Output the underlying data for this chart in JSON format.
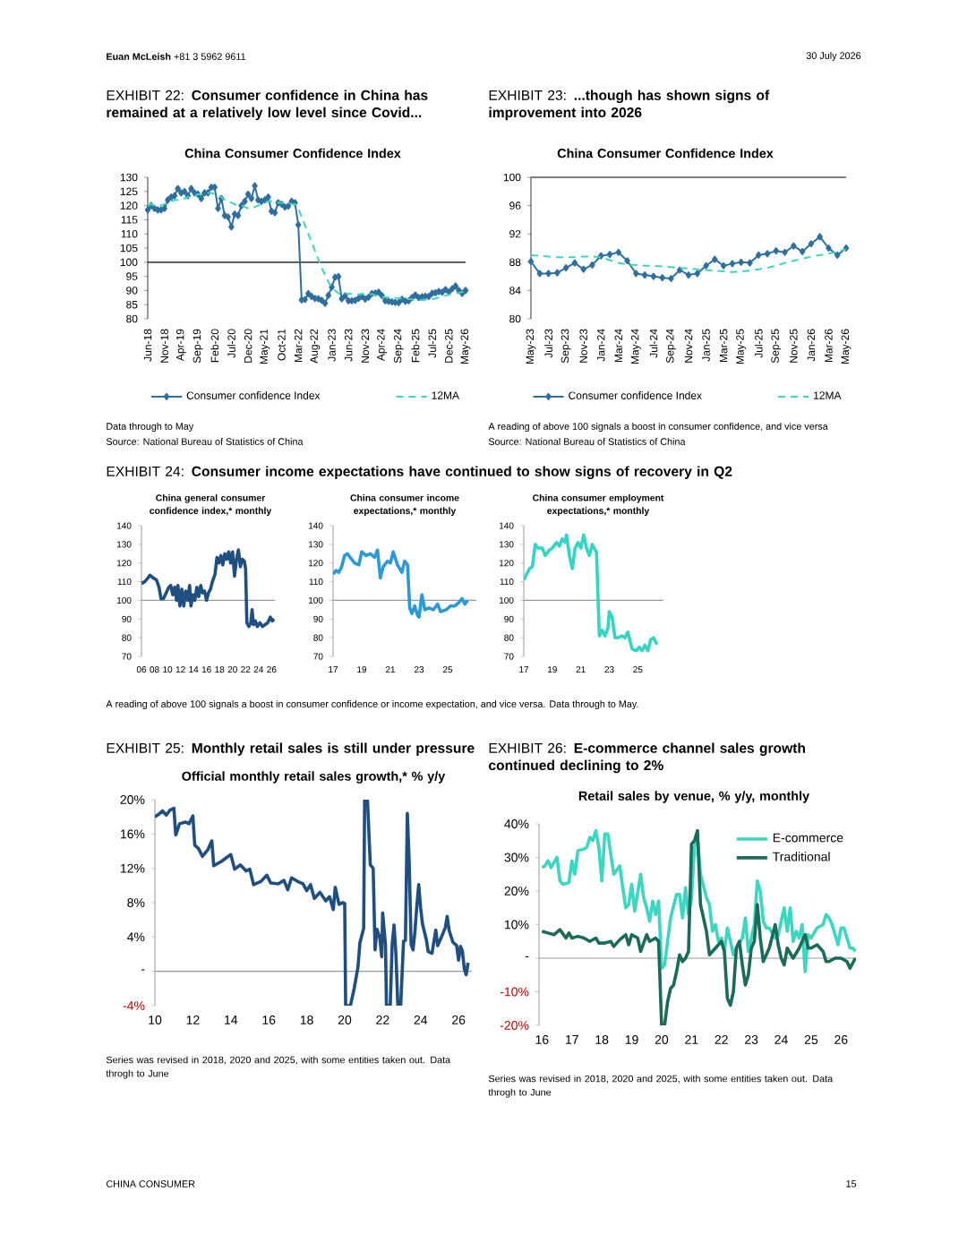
{
  "chart_data": [
    {
      "type": "line",
      "title": "EXHIBIT 22: **Consumer confidence in China has remained at a relatively low level since Covid...**",
      "subtitle": "China Consumer Confidence Index",
      "categories": [
        "Jun-18",
        null,
        null,
        null,
        null,
        "Nov-18",
        null,
        null,
        null,
        null,
        "Apr-19",
        null,
        null,
        null,
        null,
        "Sep-19",
        null,
        null,
        null,
        null,
        "Feb-20",
        null,
        null,
        null,
        null,
        "Jul-20",
        null,
        null,
        null,
        null,
        "Dec-20",
        null,
        null,
        null,
        null,
        "May-21",
        null,
        null,
        null,
        null,
        "Oct-21",
        null,
        null,
        null,
        null,
        "Mar-22",
        null,
        null,
        null,
        null,
        "Aug-22",
        null,
        null,
        null,
        null,
        "Jan-23",
        null,
        null,
        null,
        null,
        "Jun-23",
        null,
        null,
        null,
        null,
        "Nov-23",
        null,
        null,
        null,
        null,
        "Apr-24",
        null,
        null,
        null,
        null,
        "Sep-24",
        null,
        null,
        null,
        null,
        "Feb-25",
        null,
        null,
        null,
        null,
        "Jul-25",
        null,
        null,
        null,
        null,
        "Dec-25",
        null,
        null,
        null,
        null,
        "May-26"
      ],
      "series": [
        {
          "name": "Consumer confidence Index",
          "color": "#2f6fa0",
          "marker": "diamond",
          "values": [
            118.5,
            120,
            119,
            118.5,
            118.5,
            119,
            122,
            123,
            123.5,
            126,
            124.5,
            125,
            123.5,
            126,
            124.5,
            124,
            122.5,
            124.5,
            124.5,
            126.5,
            126.5,
            119,
            122.5,
            116.5,
            116,
            112.5,
            117,
            116.5,
            120,
            121.5,
            124,
            122.5,
            127,
            122,
            121.5,
            122,
            123,
            118,
            117.5,
            121,
            120.5,
            119.5,
            119.8,
            121.5,
            121,
            113.2,
            86.7,
            86.8,
            88.9,
            87.9,
            87.2,
            87.1,
            86.5,
            85.5,
            88.3,
            91.2,
            94.7,
            94.9,
            87.1,
            88.1,
            86.4,
            86.4,
            86.5,
            87.2,
            87.9,
            87.0,
            87.6,
            88.9,
            89.1,
            89.4,
            88.2,
            86.4,
            86.2,
            86.0,
            85.8,
            85.7,
            86.9,
            86.2,
            86.4,
            87.5,
            88.4,
            87.5,
            87.8,
            88.0,
            87.9,
            89.0,
            89.2,
            89.6,
            89.4,
            90.3,
            89.5,
            90.6,
            91.6,
            90.0,
            89.0,
            90.0
          ]
        },
        {
          "name": "12MA",
          "color": "#3dd6b8",
          "line_style": "dashed",
          "values": [
            120,
            120.5,
            120,
            120,
            120,
            120.5,
            121,
            121.5,
            122,
            122,
            122.5,
            122.5,
            123,
            123,
            123.5,
            124,
            124,
            124,
            124.5,
            124.5,
            124,
            123.5,
            123,
            122,
            121.5,
            121,
            120.5,
            120,
            120,
            119.5,
            119,
            119,
            119.5,
            120,
            120.5,
            121,
            121.5,
            121.5,
            121.5,
            121,
            121,
            121,
            121,
            120.5,
            120.5,
            119,
            116,
            113,
            110,
            107,
            104,
            101,
            98,
            95.5,
            93,
            91,
            90,
            89,
            88.5,
            89.0,
            88.9,
            88.8,
            88.7,
            88.7,
            88.7,
            88.8,
            88.8,
            88.7,
            88.3,
            87.9,
            87.7,
            87.6,
            87.5,
            87.5,
            87.4,
            87.3,
            87.2,
            87.1,
            87.0,
            86.9,
            86.8,
            86.7,
            86.6,
            86.7,
            86.8,
            87.0,
            87.2,
            87.5,
            87.9,
            88.2,
            88.5,
            88.8,
            89.0,
            89.2,
            89.5,
            89.8
          ]
        }
      ],
      "ylim": [
        80,
        130
      ],
      "yticks": [
        80,
        85,
        90,
        95,
        100,
        105,
        110,
        115,
        120,
        125,
        130
      ],
      "ref_lines": [
        {
          "axis": "y",
          "value": 100,
          "color": "#000000"
        }
      ],
      "legend": "bottom",
      "annotations": [
        "**Euan McLeish**   +81 3 5962 9611",
        "30 July 2026",
        "CHINA CONSUMER",
        "15",
        "Data through to May",
        "Source: National Bureau of Statistics of China"
      ]
    },
    {
      "type": "line",
      "title": "EXHIBIT 23: **...though has shown signs of improvement into 2026**",
      "subtitle": "China Consumer Confidence Index",
      "categories": [
        "May-23",
        null,
        "Jul-23",
        null,
        "Sep-23",
        null,
        "Nov-23",
        null,
        "Jan-24",
        null,
        "Mar-24",
        null,
        "May-24",
        null,
        "Jul-24",
        null,
        "Sep-24",
        null,
        "Nov-24",
        null,
        "Jan-25",
        null,
        "Mar-25",
        null,
        "May-25",
        null,
        "Jul-25",
        null,
        "Sep-25",
        null,
        "Nov-25",
        null,
        "Jan-26",
        null,
        "Mar-26",
        null,
        "May-26"
      ],
      "series": [
        {
          "name": "Consumer confidence Index",
          "color": "#2f6fa0",
          "marker": "diamond",
          "values": [
            88.1,
            86.4,
            86.4,
            86.5,
            87.2,
            87.9,
            87.0,
            87.6,
            88.9,
            89.1,
            89.4,
            88.2,
            86.4,
            86.2,
            86.0,
            85.8,
            85.7,
            86.9,
            86.2,
            86.4,
            87.5,
            88.4,
            87.5,
            87.8,
            88.0,
            87.9,
            89.0,
            89.2,
            89.6,
            89.4,
            90.3,
            89.5,
            90.6,
            91.6,
            90.0,
            89.0,
            90.0
          ]
        },
        {
          "name": "12MA",
          "color": "#3dd6b8",
          "line_style": "dashed",
          "values": [
            89.0,
            88.9,
            88.8,
            88.7,
            88.7,
            88.7,
            88.8,
            88.8,
            88.7,
            88.3,
            87.9,
            87.7,
            87.6,
            87.5,
            87.5,
            87.4,
            87.3,
            87.2,
            87.1,
            87.0,
            86.9,
            86.8,
            86.7,
            86.6,
            86.7,
            86.8,
            87.0,
            87.2,
            87.5,
            87.9,
            88.2,
            88.5,
            88.8,
            89.0,
            89.2,
            89.5,
            89.8
          ]
        }
      ],
      "ylim": [
        80,
        100
      ],
      "yticks": [
        80,
        84,
        88,
        92,
        96,
        100
      ],
      "ref_lines": [
        {
          "axis": "y",
          "value": 100,
          "color": "#000000"
        }
      ],
      "legend": "bottom",
      "annotations": [
        "A reading of above 100 signals a boost in consumer confidence, and vice versa",
        "Source: National Bureau of Statistics of China"
      ]
    },
    {
      "type": "line",
      "title": "EXHIBIT 24: **Consumer income expectations have continued to show signs of recovery in Q2**",
      "subtitle": "China general consumer confidence index,* monthly",
      "series": [
        {
          "color": "#1f4e80",
          "x": [
            2006.0,
            2006.5,
            2007.0,
            2007.3,
            2007.8,
            2008.3,
            2008.7,
            2009.0,
            2009.4,
            2009.8,
            2010.2,
            2010.5,
            2010.8,
            2011.1,
            2011.4,
            2011.6,
            2011.9,
            2012.2,
            2012.5,
            2012.8,
            2013.1,
            2013.4,
            2013.6,
            2013.9,
            2014.2,
            2014.5,
            2014.8,
            2015.1,
            2015.4,
            2015.7,
            2016.0,
            2016.3,
            2016.6,
            2016.9,
            2017.3,
            2017.6,
            2017.9,
            2018.2,
            2018.5,
            2018.8,
            2019.1,
            2019.4,
            2019.7,
            2020.0,
            2020.3,
            2020.6,
            2020.9,
            2021.2,
            2021.5,
            2021.8,
            2022.0,
            2022.2,
            2022.5,
            2022.8,
            2023.0,
            2023.2,
            2023.5,
            2023.8,
            2024.2,
            2024.6,
            2025.0,
            2025.4,
            2025.8,
            2026.1,
            2026.4
          ],
          "values": [
            109,
            110,
            112,
            113.5,
            112,
            111,
            107,
            101,
            101,
            104,
            107,
            108,
            103,
            107,
            100,
            108,
            97,
            106,
            97,
            105,
            100,
            108,
            97,
            103,
            100,
            107,
            102,
            108,
            104,
            105,
            100,
            104,
            106,
            110,
            114,
            123,
            120,
            124,
            119,
            125,
            122,
            126,
            120,
            126,
            113,
            122,
            127,
            118,
            122,
            121,
            117,
            88,
            86,
            88,
            95,
            87,
            89,
            86,
            88,
            86,
            87,
            88,
            91,
            89,
            90
          ]
        }
      ],
      "xlim": [
        2006,
        2026.5
      ],
      "xticks": [
        {
          "value": 2006,
          "label": "06"
        },
        {
          "value": 2008,
          "label": "08"
        },
        {
          "value": 2010,
          "label": "10"
        },
        {
          "value": 2012,
          "label": "12"
        },
        {
          "value": 2014,
          "label": "14"
        },
        {
          "value": 2016,
          "label": "16"
        },
        {
          "value": 2018,
          "label": "18"
        },
        {
          "value": 2020,
          "label": "20"
        },
        {
          "value": 2022,
          "label": "22"
        },
        {
          "value": 2024,
          "label": "24"
        },
        {
          "value": 2026,
          "label": "26"
        }
      ],
      "ylim": [
        70,
        140
      ],
      "yticks": [
        70,
        80,
        90,
        100,
        110,
        120,
        130,
        140
      ],
      "ref_lines": [
        {
          "axis": "y",
          "value": 100,
          "color": "#999999"
        }
      ],
      "annotations": [
        "A reading of above 100 signals a boost in consumer confidence or income expectation, and vice versa. Data through to May."
      ]
    },
    {
      "type": "line",
      "subtitle": "China consumer income expectations,* monthly",
      "series": [
        {
          "color": "#2b9ad6",
          "x": [
            2017.0,
            2017.2,
            2017.4,
            2017.6,
            2017.8,
            2018.0,
            2018.2,
            2018.5,
            2018.8,
            2019.0,
            2019.3,
            2019.6,
            2019.9,
            2020.1,
            2020.3,
            2020.5,
            2020.8,
            2021.0,
            2021.2,
            2021.5,
            2021.8,
            2022.0,
            2022.2,
            2022.35,
            2022.5,
            2022.7,
            2022.9,
            2023.0,
            2023.2,
            2023.4,
            2023.7,
            2024.0,
            2024.3,
            2024.5,
            2024.9,
            2025.2,
            2025.5,
            2025.8,
            2026.0,
            2026.2,
            2026.4
          ],
          "values": [
            114,
            116,
            115,
            118,
            124,
            125,
            123,
            120,
            119,
            126,
            124,
            125,
            123,
            127,
            112,
            118,
            121,
            120,
            126,
            119,
            115,
            121,
            119,
            96,
            93,
            97,
            92,
            91,
            103,
            95,
            96,
            95,
            98,
            94,
            95,
            97,
            97,
            99,
            101,
            98,
            100
          ]
        }
      ],
      "xlim": [
        2017,
        2027
      ],
      "xticks": [
        {
          "value": 2017,
          "label": "17"
        },
        {
          "value": 2019,
          "label": "19"
        },
        {
          "value": 2021,
          "label": "21"
        },
        {
          "value": 2023,
          "label": "23"
        },
        {
          "value": 2025,
          "label": "25"
        }
      ],
      "ylim": [
        70,
        140
      ],
      "yticks": [
        70,
        80,
        90,
        100,
        110,
        120,
        130,
        140
      ],
      "ref_lines": [
        {
          "axis": "y",
          "value": 100,
          "color": "#999999"
        }
      ]
    },
    {
      "type": "line",
      "subtitle": "China consumer employment expectations,* monthly",
      "series": [
        {
          "color": "#33d6c2",
          "x": [
            2017.0,
            2017.2,
            2017.4,
            2017.6,
            2017.8,
            2018.0,
            2018.3,
            2018.5,
            2018.8,
            2019.0,
            2019.3,
            2019.5,
            2019.7,
            2019.9,
            2020.0,
            2020.2,
            2020.4,
            2020.6,
            2020.8,
            2021.0,
            2021.2,
            2021.4,
            2021.6,
            2021.8,
            2022.0,
            2022.1,
            2022.3,
            2022.5,
            2022.7,
            2022.9,
            2023.0,
            2023.2,
            2023.4,
            2023.6,
            2023.9,
            2024.1,
            2024.3,
            2024.6,
            2024.9,
            2025.1,
            2025.3,
            2025.5,
            2025.7,
            2025.9,
            2026.1,
            2026.3,
            2026.4
          ],
          "values": [
            111,
            114,
            117,
            118,
            130,
            128,
            128,
            124,
            127,
            128,
            131,
            129,
            133,
            131,
            135,
            124,
            117,
            128,
            131,
            128,
            135,
            128,
            124,
            130,
            127,
            126,
            81,
            84,
            81,
            85,
            94,
            91,
            80,
            80,
            81,
            80,
            83,
            74,
            73,
            75,
            73,
            76,
            73,
            79,
            80,
            77,
            77
          ]
        }
      ],
      "xlim": [
        2017,
        2026.8
      ],
      "xticks": [
        {
          "value": 2017,
          "label": "17"
        },
        {
          "value": 2019,
          "label": "19"
        },
        {
          "value": 2021,
          "label": "21"
        },
        {
          "value": 2023,
          "label": "23"
        },
        {
          "value": 2025,
          "label": "25"
        }
      ],
      "ylim": [
        70,
        140
      ],
      "yticks": [
        70,
        80,
        90,
        100,
        110,
        120,
        130,
        140
      ],
      "ref_lines": [
        {
          "axis": "y",
          "value": 100,
          "color": "#999999"
        }
      ]
    },
    {
      "type": "line",
      "title": "EXHIBIT 25: **Monthly retail sales is still under pressure**",
      "subtitle": "Official monthly retail sales growth,* % y/y",
      "series": [
        {
          "color": "#1f4e80",
          "x": [
            2010.0,
            2010.2,
            2010.4,
            2010.6,
            2010.8,
            2011.0,
            2011.1,
            2011.3,
            2011.6,
            2011.8,
            2012.0,
            2012.1,
            2012.3,
            2012.5,
            2012.8,
            2013.0,
            2013.1,
            2013.5,
            2013.8,
            2014.0,
            2014.2,
            2014.5,
            2014.8,
            2015.0,
            2015.2,
            2015.6,
            2015.9,
            2016.1,
            2016.5,
            2016.8,
            2017.0,
            2017.2,
            2017.5,
            2017.8,
            2018.0,
            2018.2,
            2018.4,
            2018.7,
            2019.0,
            2019.2,
            2019.4,
            2019.5,
            2019.7,
            2019.9,
            2020.0,
            2020.05,
            2020.3,
            2020.5,
            2020.7,
            2020.8,
            2020.95,
            2021.0,
            2021.05,
            2021.2,
            2021.35,
            2021.5,
            2021.6,
            2021.7,
            2021.85,
            2021.95,
            2022.0,
            2022.15,
            2022.2,
            2022.4,
            2022.5,
            2022.6,
            2022.7,
            2022.8,
            2022.95,
            2023.1,
            2023.2,
            2023.3,
            2023.4,
            2023.5,
            2023.6,
            2023.7,
            2023.8,
            2023.9,
            2024.0,
            2024.1,
            2024.3,
            2024.4,
            2024.6,
            2024.8,
            2024.9,
            2025.1,
            2025.3,
            2025.4,
            2025.5,
            2025.7,
            2025.9,
            2026.0,
            2026.1,
            2026.2,
            2026.3,
            2026.4,
            2026.5
          ],
          "values": [
            18,
            18.3,
            18.7,
            18.2,
            18.8,
            19.0,
            15.9,
            17.2,
            17.4,
            17.2,
            18.1,
            14.7,
            14.3,
            13.4,
            14.2,
            15.2,
            12.3,
            12.8,
            13.3,
            13.6,
            11.9,
            12.4,
            11.7,
            11.9,
            10.1,
            10.5,
            11.2,
            10.3,
            10.2,
            10.6,
            9.5,
            10.9,
            10.5,
            10.2,
            9.4,
            10.1,
            8.5,
            9.2,
            8.2,
            8.7,
            7.2,
            9.8,
            7.8,
            8.0,
            7.9,
            -4,
            -4,
            -2,
            0.5,
            3.3,
            4.6,
            5.0,
            20,
            20,
            12.4,
            12.0,
            2.5,
            4.9,
            3.9,
            1.7,
            6.8,
            3.1,
            -4,
            -4,
            3.1,
            5.4,
            2.0,
            -4,
            -4,
            3.5,
            3.6,
            18.4,
            12.7,
            3.1,
            2.5,
            4.6,
            7.6,
            10.1,
            7.4,
            5.5,
            3.7,
            2.3,
            2.1,
            4.8,
            3.0,
            4.0,
            5.1,
            6.4,
            4.8,
            3.4,
            3.0,
            1.3,
            2.9,
            2.4,
            0.3,
            -0.4,
            1.0
          ]
        }
      ],
      "xlim": [
        2010,
        2026.7
      ],
      "xticks": [
        {
          "value": 2010,
          "label": "10"
        },
        {
          "value": 2012,
          "label": "12"
        },
        {
          "value": 2014,
          "label": "14"
        },
        {
          "value": 2016,
          "label": "16"
        },
        {
          "value": 2018,
          "label": "18"
        },
        {
          "value": 2020,
          "label": "20"
        },
        {
          "value": 2022,
          "label": "22"
        },
        {
          "value": 2024,
          "label": "24"
        },
        {
          "value": 2026,
          "label": "26"
        }
      ],
      "ylim": [
        -4,
        20
      ],
      "yticks": [
        {
          "value": -4,
          "label": "-4%"
        },
        {
          "value": 0,
          "label": "-"
        },
        {
          "value": 4,
          "label": "4%"
        },
        {
          "value": 8,
          "label": "8%"
        },
        {
          "value": 12,
          "label": "12%"
        },
        {
          "value": 16,
          "label": "16%"
        },
        {
          "value": 20,
          "label": "20%"
        }
      ],
      "ref_lines": [
        {
          "axis": "y",
          "value": 0,
          "color": "#999999"
        }
      ],
      "annotations": [
        "Series was revised in 2018, 2020 and 2025, with some entities taken out. Data throgh to June"
      ]
    },
    {
      "type": "line",
      "title": "EXHIBIT 26: **E-commerce channel sales growth continued declining to 2%**",
      "subtitle": "Retail sales by venue, % y/y, monthly",
      "series": [
        {
          "name": "E-commerce",
          "color": "#3dd6c0",
          "x": [
            2016.0,
            2016.1,
            2016.2,
            2016.3,
            2016.5,
            2016.6,
            2016.7,
            2016.9,
            2017.0,
            2017.1,
            2017.2,
            2017.4,
            2017.5,
            2017.6,
            2017.7,
            2017.8,
            2017.9,
            2018.0,
            2018.1,
            2018.2,
            2018.4,
            2018.6,
            2018.7,
            2018.8,
            2018.9,
            2019.0,
            2019.1,
            2019.3,
            2019.4,
            2019.5,
            2019.6,
            2019.7,
            2019.8,
            2019.9,
            2020.0,
            2020.1,
            2020.3,
            2020.5,
            2020.6,
            2020.7,
            2020.8,
            2020.9,
            2021.0,
            2021.1,
            2021.2,
            2021.3,
            2021.5,
            2021.6,
            2021.7,
            2021.8,
            2021.9,
            2022.0,
            2022.1,
            2022.2,
            2022.4,
            2022.5,
            2022.7,
            2022.8,
            2022.9,
            2023.0,
            2023.1,
            2023.2,
            2023.3,
            2023.4,
            2023.5,
            2023.6,
            2023.8,
            2023.9,
            2024.0,
            2024.1,
            2024.2,
            2024.3,
            2024.4,
            2024.5,
            2024.6,
            2024.7,
            2024.8,
            2024.9,
            2025.0,
            2025.2,
            2025.4,
            2025.5,
            2025.6,
            2025.7,
            2025.8,
            2025.9,
            2026.0,
            2026.1,
            2026.2,
            2026.3,
            2026.4,
            2026.48
          ],
          "values": [
            27,
            27.5,
            29,
            27,
            30,
            23,
            22,
            22.5,
            29,
            25,
            32,
            32.5,
            33,
            36,
            35,
            38,
            33,
            23,
            37,
            37,
            25,
            27.5,
            21,
            15,
            16,
            22,
            14,
            25,
            18,
            15,
            11,
            17,
            13,
            17,
            -3,
            -2,
            12,
            19,
            19,
            12,
            21,
            13,
            18,
            33,
            36,
            25,
            18,
            16,
            8,
            10,
            5,
            6,
            2,
            9,
            1,
            3,
            6,
            12,
            2,
            6,
            10,
            23,
            20,
            11,
            9,
            9,
            6,
            7,
            11,
            15,
            8,
            15,
            5,
            8,
            6,
            10,
            -4,
            7,
            6,
            9,
            10,
            13,
            12,
            10,
            7,
            4,
            9,
            9,
            6,
            3,
            3,
            2
          ]
        },
        {
          "name": "Traditional",
          "color": "#1a6b5a",
          "x": [
            2016.0,
            2016.2,
            2016.4,
            2016.6,
            2016.8,
            2016.9,
            2017.0,
            2017.2,
            2017.4,
            2017.6,
            2017.8,
            2017.9,
            2018.1,
            2018.3,
            2018.4,
            2018.6,
            2018.8,
            2018.9,
            2019.0,
            2019.2,
            2019.3,
            2019.5,
            2019.6,
            2019.8,
            2019.9,
            2020.0,
            2020.1,
            2020.2,
            2020.3,
            2020.4,
            2020.5,
            2020.6,
            2020.7,
            2020.8,
            2020.9,
            2021.0,
            2021.1,
            2021.2,
            2021.3,
            2021.4,
            2021.5,
            2021.6,
            2021.8,
            2022.0,
            2022.1,
            2022.2,
            2022.3,
            2022.4,
            2022.5,
            2022.6,
            2022.7,
            2022.8,
            2022.9,
            2023.0,
            2023.1,
            2023.2,
            2023.3,
            2023.4,
            2023.6,
            2023.8,
            2023.9,
            2024.0,
            2024.1,
            2024.2,
            2024.4,
            2024.6,
            2024.8,
            2024.9,
            2025.0,
            2025.2,
            2025.4,
            2025.5,
            2025.6,
            2025.8,
            2026.0,
            2026.2,
            2026.3,
            2026.48
          ],
          "values": [
            8,
            7.5,
            7,
            8.5,
            6,
            7.5,
            6,
            6.5,
            6,
            5,
            6,
            4.5,
            4.5,
            5,
            3.5,
            5.5,
            7,
            4,
            7,
            6,
            2,
            7,
            5,
            6,
            5,
            -20,
            -20,
            -13,
            -9,
            -8,
            -4,
            1,
            -1,
            0,
            2,
            34,
            35,
            38,
            16,
            12,
            8,
            1,
            3,
            5,
            2,
            -12,
            -14,
            -10,
            3,
            5,
            -2,
            -8,
            -5,
            3,
            5,
            16,
            6,
            -1,
            3,
            10,
            4,
            0,
            -2,
            3,
            0,
            3,
            7,
            3,
            3,
            4,
            2,
            -1,
            -1,
            0,
            0,
            -1,
            -3,
            0
          ]
        }
      ],
      "xlim": [
        2015.9,
        2026.5
      ],
      "xticks": [
        {
          "value": 2016,
          "label": "16"
        },
        {
          "value": 2017,
          "label": "17"
        },
        {
          "value": 2018,
          "label": "18"
        },
        {
          "value": 2019,
          "label": "19"
        },
        {
          "value": 2020,
          "label": "20"
        },
        {
          "value": 2021,
          "label": "21"
        },
        {
          "value": 2022,
          "label": "22"
        },
        {
          "value": 2023,
          "label": "23"
        },
        {
          "value": 2024,
          "label": "24"
        },
        {
          "value": 2025,
          "label": "25"
        },
        {
          "value": 2026,
          "label": "26"
        }
      ],
      "ylim": [
        -20,
        40
      ],
      "yticks": [
        {
          "value": -20,
          "label": "-20%"
        },
        {
          "value": -10,
          "label": "-10%"
        },
        {
          "value": 0,
          "label": "-"
        },
        {
          "value": 10,
          "label": "10%"
        },
        {
          "value": 20,
          "label": "20%"
        },
        {
          "value": 30,
          "label": "30%"
        },
        {
          "value": 40,
          "label": "40%"
        }
      ],
      "ref_lines": [
        {
          "axis": "y",
          "value": 0,
          "color": "#999999"
        }
      ],
      "legend": "top right",
      "annotations": [
        "Series was revised in 2018, 2020 and 2025, with some entities taken out. Data throgh to June"
      ]
    }
  ]
}
